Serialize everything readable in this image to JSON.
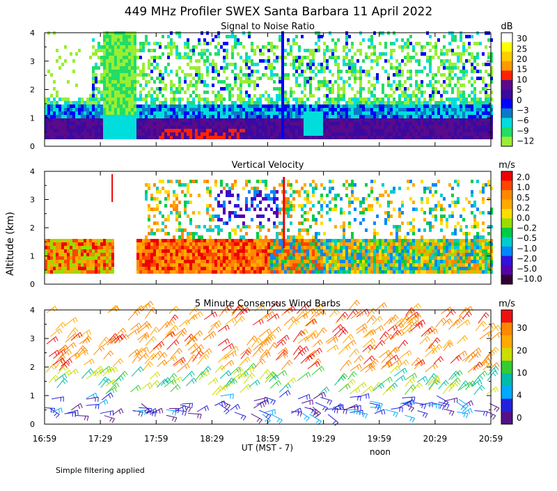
{
  "title": "449 MHz Profiler SWEX Santa Barbara 11 April 2022",
  "y_axis_label": "Altitude (km)",
  "x_axis_label": "UT  (MST - 7)",
  "noon_label": "noon",
  "footnote": "Simple filtering applied",
  "x_ticks": [
    "16:59",
    "17:29",
    "17:59",
    "18:29",
    "18:59",
    "19:29",
    "19:59",
    "20:29",
    "20:59"
  ],
  "chart_data": [
    {
      "type": "heatmap",
      "title": "Signal to Noise Ratio",
      "unit": "dB",
      "xlabel": "UT  (MST - 7)",
      "ylabel": "Altitude (km)",
      "x_range": [
        "16:59",
        "20:59"
      ],
      "ylim": [
        0,
        4
      ],
      "y_ticks": [
        "0",
        "1",
        "2",
        "3",
        "4"
      ],
      "colorbar": {
        "labels": [
          "30",
          "25",
          "20",
          "15",
          "10",
          "5",
          "0",
          "−3",
          "−6",
          "−9",
          "−12"
        ],
        "colors": [
          "#ffffff",
          "#ffff00",
          "#ffcc00",
          "#ff9900",
          "#ff2200",
          "#5a0a8a",
          "#3a0aa0",
          "#0000ff",
          "#0a7ac8",
          "#00dddd",
          "#22dd66",
          "#99ee33"
        ]
      }
    },
    {
      "type": "heatmap",
      "title": "Vertical Velocity",
      "unit": "m/s",
      "xlabel": "UT  (MST - 7)",
      "ylabel": "Altitude (km)",
      "x_range": [
        "16:59",
        "20:59"
      ],
      "ylim": [
        0,
        4
      ],
      "y_ticks": [
        "0",
        "1",
        "2",
        "3",
        "4"
      ],
      "colorbar": {
        "labels": [
          "2.0",
          "1.0",
          "0.5",
          "0.2",
          "0.0",
          "−0.2",
          "−0.5",
          "−1.0",
          "−2.0",
          "−5.0",
          "−10.0"
        ],
        "colors": [
          "#ee0000",
          "#ff4400",
          "#ff8800",
          "#ffaa00",
          "#ffdd00",
          "#99dd00",
          "#00cc44",
          "#00cccc",
          "#0088ff",
          "#3311dd",
          "#5500aa",
          "#330033"
        ]
      }
    },
    {
      "type": "scatter",
      "title": "5 Minute Consensus Wind Barbs",
      "unit": "m/s",
      "xlabel": "UT  (MST - 7)",
      "ylabel": "Altitude (km)",
      "x_range": [
        "16:59",
        "20:59"
      ],
      "ylim": [
        0,
        4
      ],
      "y_ticks": [
        "0",
        "1",
        "2",
        "3",
        "4"
      ],
      "colorbar": {
        "labels": [
          "30",
          "20",
          "10",
          "4",
          "0"
        ],
        "colors": [
          "#ee1111",
          "#ff8800",
          "#ffaa00",
          "#ccdd00",
          "#33cc33",
          "#00bbaa",
          "#00aaff",
          "#2222dd",
          "#551188"
        ]
      }
    }
  ]
}
